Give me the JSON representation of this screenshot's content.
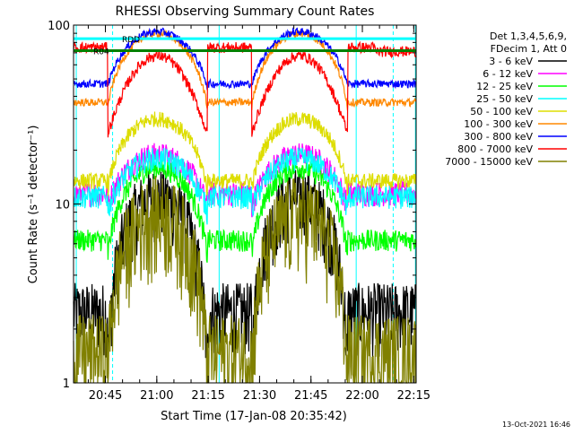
{
  "chart_data": {
    "type": "line",
    "title": "RHESSI Observing Summary Count Rates",
    "xlabel": "Start Time (17-Jan-08 20:35:42)",
    "ylabel": "Count Rate (s⁻¹ detector⁻¹)",
    "yscale": "log",
    "ylim": [
      1,
      100
    ],
    "y_ticks": [
      {
        "value": 1,
        "label": "1"
      },
      {
        "value": 10,
        "label": "10"
      },
      {
        "value": 100,
        "label": "100"
      }
    ],
    "xlim_minutes": [
      0,
      100
    ],
    "x_ticks": [
      {
        "minute": 9.3,
        "label": "20:45"
      },
      {
        "minute": 24.3,
        "label": "21:00"
      },
      {
        "minute": 39.3,
        "label": "21:15"
      },
      {
        "minute": 54.3,
        "label": "21:30"
      },
      {
        "minute": 69.3,
        "label": "21:45"
      },
      {
        "minute": 84.3,
        "label": "22:00"
      },
      {
        "minute": 99.3,
        "label": "22:15"
      }
    ],
    "legend": {
      "placement": "outside-right",
      "header": [
        "Det 1,3,4,5,6,9,",
        "FDecim 1, Att 0"
      ]
    },
    "series": [
      {
        "name": "3 - 6 keV",
        "color": "#000000",
        "peak": 11,
        "night": 2.5,
        "min": 1,
        "mode": "day",
        "noise": 0.45
      },
      {
        "name": "6 - 12 keV",
        "color": "#ff00ff",
        "peak": 19,
        "night": 11.5,
        "min": 9.5,
        "mode": "day",
        "noise": 0.16
      },
      {
        "name": "12 - 25 keV",
        "color": "#00ff00",
        "peak": 16,
        "night": 6.3,
        "min": 5,
        "mode": "day",
        "noise": 0.14
      },
      {
        "name": "25 - 50 keV",
        "color": "#00ffff",
        "peak": 18,
        "night": 11,
        "min": 9,
        "mode": "day",
        "noise": 0.15
      },
      {
        "name": "50 - 100 keV",
        "color": "#dddd00",
        "peak": 30,
        "night": 13.5,
        "min": 12,
        "mode": "day",
        "noise": 0.1
      },
      {
        "name": "100 - 300 keV",
        "color": "#ff8800",
        "peak": 90,
        "night": 37,
        "min": 34,
        "mode": "day",
        "noise": 0.05
      },
      {
        "name": "300 - 800 keV",
        "color": "#0000ff",
        "peak": 92,
        "night": 47,
        "min": 45,
        "mode": "day",
        "noise": 0.05
      },
      {
        "name": "800 - 7000 keV",
        "color": "#ff0000",
        "peak": 65,
        "night": 75,
        "min": 25,
        "mode": "red",
        "noise": 0.07
      },
      {
        "name": "7000 - 15000 keV",
        "color": "#808000",
        "peak": 9,
        "night": 1.5,
        "min": 1,
        "mode": "day",
        "noise": 0.6
      }
    ],
    "flags": [
      {
        "label": "RDD",
        "color": "#00ffff",
        "value": 84
      },
      {
        "label": "R04",
        "color": "#008000",
        "value": 72
      }
    ],
    "flag_lines": [
      {
        "color": "#00ffff",
        "value": 84
      },
      {
        "color": "#008000",
        "value": 72
      }
    ],
    "saa_boundaries_minutes": [
      11.4,
      93.3
    ],
    "night_boundaries_minutes": [
      0.8,
      42.5,
      82.5,
      99.8
    ],
    "day_windows_minutes": [
      [
        10,
        39
      ],
      [
        52,
        80
      ]
    ]
  },
  "footer": {
    "date": "13-Oct-2021 16:46"
  }
}
